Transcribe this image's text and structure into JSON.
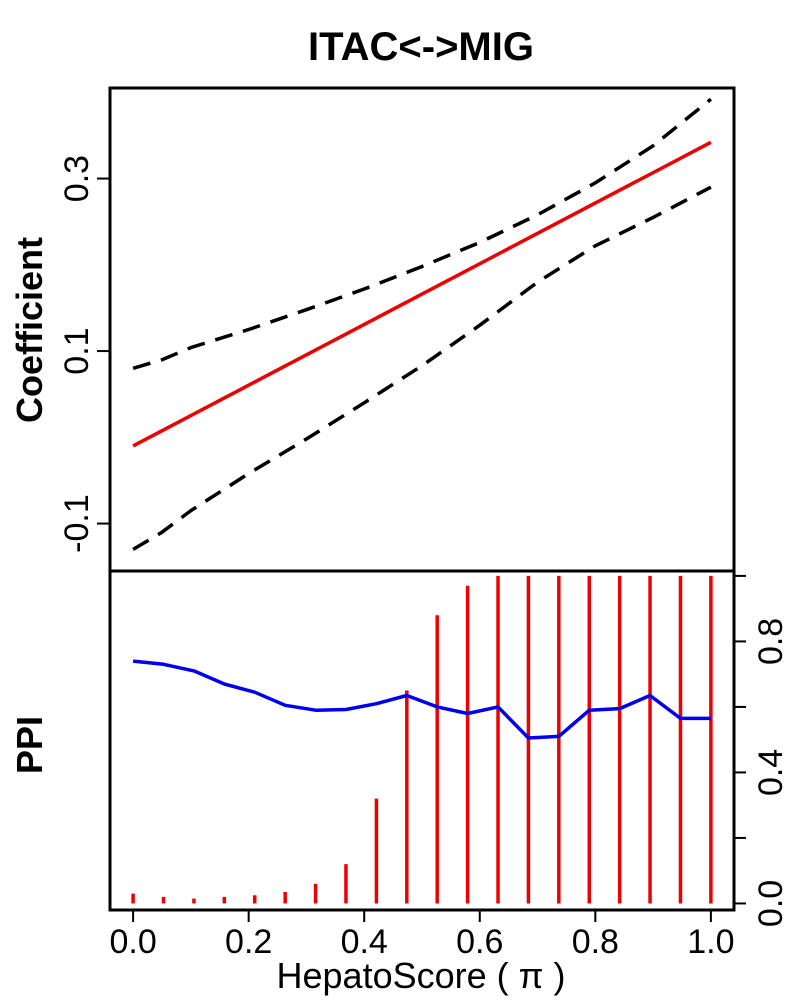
{
  "chart_data": [
    {
      "type": "line",
      "title": "ITAC<->MIG",
      "ylabel": "Coefficient",
      "xlabel": "",
      "xlim": [
        -0.04,
        1.04
      ],
      "ylim": [
        -0.155,
        0.405
      ],
      "yticks": [
        -0.1,
        0.1,
        0.3
      ],
      "ytick_labels": [
        "-0.1",
        "0.1",
        "0.3"
      ],
      "series": [
        {
          "role": "estimate",
          "color": "#ee0000",
          "style": "solid",
          "x": [
            0.0,
            1.0
          ],
          "y": [
            -0.01,
            0.342
          ]
        },
        {
          "role": "upper-band",
          "color": "#000000",
          "style": "dashed",
          "x": [
            0.0,
            0.05,
            0.1,
            0.2,
            0.3,
            0.4,
            0.5,
            0.6,
            0.7,
            0.8,
            0.9,
            1.0
          ],
          "y": [
            0.08,
            0.09,
            0.104,
            0.125,
            0.148,
            0.172,
            0.198,
            0.226,
            0.258,
            0.295,
            0.338,
            0.392
          ]
        },
        {
          "role": "lower-band",
          "color": "#000000",
          "style": "dashed",
          "x": [
            0.0,
            0.05,
            0.1,
            0.2,
            0.3,
            0.4,
            0.5,
            0.6,
            0.7,
            0.8,
            0.9,
            1.0
          ],
          "y": [
            -0.13,
            -0.11,
            -0.085,
            -0.042,
            -0.002,
            0.04,
            0.083,
            0.13,
            0.18,
            0.222,
            0.255,
            0.29
          ]
        }
      ]
    },
    {
      "type": "bar",
      "ylabel": "PPI",
      "xlabel": "HepatoScore ( π )",
      "xlim": [
        -0.04,
        1.04
      ],
      "ylim": [
        -0.02,
        1.015
      ],
      "yticks": [
        0.0,
        0.4,
        0.8
      ],
      "ytick_labels": [
        "0.0",
        "0.4",
        "0.8"
      ],
      "xticks": [
        0.0,
        0.2,
        0.4,
        0.6,
        0.8,
        1.0
      ],
      "xtick_labels": [
        "0.0",
        "0.2",
        "0.4",
        "0.6",
        "0.8",
        "1.0"
      ],
      "yaxis_side": "right",
      "series": [
        {
          "role": "ppi-bars",
          "color": "#ee0000",
          "x": [
            0.0,
            0.0526,
            0.1053,
            0.1579,
            0.2105,
            0.2632,
            0.3158,
            0.3684,
            0.4211,
            0.4737,
            0.5263,
            0.5789,
            0.6316,
            0.6842,
            0.7368,
            0.7895,
            0.8421,
            0.8947,
            0.9474,
            1.0
          ],
          "values": [
            0.03,
            0.02,
            0.015,
            0.02,
            0.025,
            0.035,
            0.06,
            0.12,
            0.32,
            0.65,
            0.88,
            0.97,
            1.0,
            1.0,
            1.0,
            1.0,
            1.0,
            1.0,
            1.0,
            1.0
          ]
        },
        {
          "role": "ppi-line",
          "color": "#0000ee",
          "style": "solid",
          "x": [
            0.0,
            0.0526,
            0.1053,
            0.1579,
            0.2105,
            0.2632,
            0.3158,
            0.3684,
            0.4211,
            0.4737,
            0.5263,
            0.5789,
            0.6316,
            0.6842,
            0.7368,
            0.7895,
            0.8421,
            0.8947,
            0.9474,
            1.0
          ],
          "values": [
            0.74,
            0.73,
            0.71,
            0.67,
            0.645,
            0.605,
            0.59,
            0.592,
            0.61,
            0.635,
            0.6,
            0.58,
            0.6,
            0.505,
            0.51,
            0.59,
            0.595,
            0.635,
            0.565,
            0.565
          ]
        }
      ]
    }
  ]
}
